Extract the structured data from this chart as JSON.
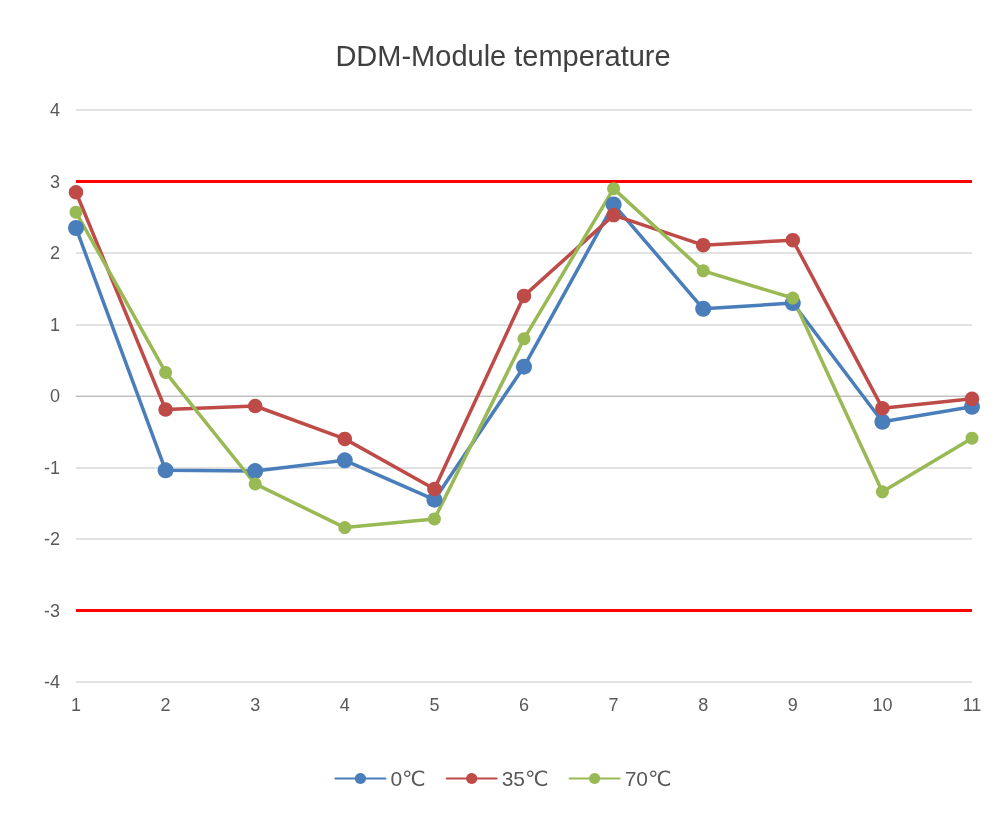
{
  "chart_data": {
    "type": "line",
    "title": "DDM-Module temperature",
    "categories": [
      "1",
      "2",
      "3",
      "4",
      "5",
      "6",
      "7",
      "8",
      "9",
      "10",
      "11"
    ],
    "series": [
      {
        "name": "0℃",
        "color": "#4a7ebb",
        "values": [
          2.35,
          -1.04,
          -1.05,
          -0.9,
          -1.45,
          0.41,
          2.68,
          1.22,
          1.3,
          -0.36,
          -0.15
        ]
      },
      {
        "name": "35℃",
        "color": "#be4b48",
        "values": [
          2.85,
          -0.19,
          -0.14,
          -0.6,
          -1.3,
          1.4,
          2.53,
          2.11,
          2.18,
          -0.17,
          -0.04
        ]
      },
      {
        "name": "70℃",
        "color": "#98b954",
        "values": [
          2.57,
          0.33,
          -1.23,
          -1.84,
          -1.72,
          0.8,
          2.9,
          1.75,
          1.37,
          -1.34,
          -0.59
        ]
      }
    ],
    "ylim": [
      -4,
      4
    ],
    "yticks": [
      -4,
      -3,
      -2,
      -1,
      0,
      1,
      2,
      3,
      4
    ],
    "ref_lines": [
      {
        "axis": "y",
        "value": 3,
        "label": null,
        "color": "#ff0000"
      },
      {
        "axis": "y",
        "value": -3,
        "label": null,
        "color": "#ff0000"
      }
    ],
    "grid": "y",
    "legend": "bottom",
    "marker": "circle",
    "line_style": "solid"
  }
}
